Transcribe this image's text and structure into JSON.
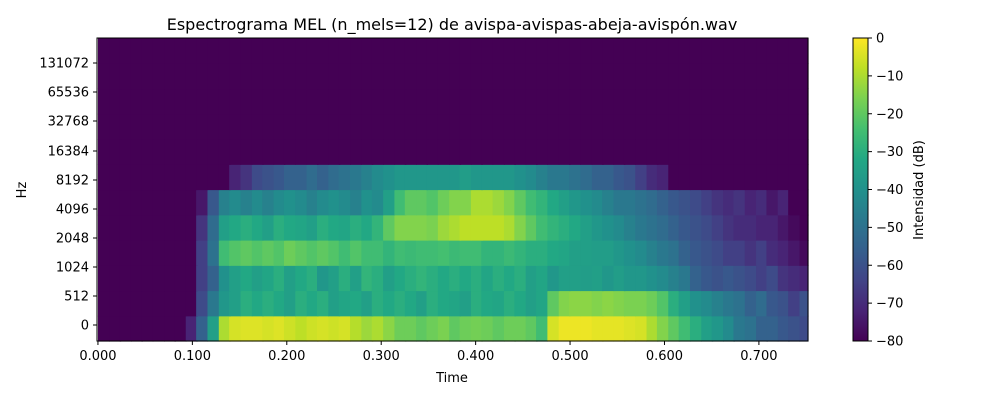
{
  "chart_data": {
    "type": "heatmap",
    "title": "Espectrograma MEL (n_mels=12) de avispa-avispas-abeja-avispón.wav",
    "xlabel": "Time",
    "ylabel": "Hz",
    "xlim": [
      -0.001,
      0.752
    ],
    "x_ticks": [
      "0.000",
      "0.100",
      "0.200",
      "0.300",
      "0.400",
      "0.500",
      "0.600",
      "0.700"
    ],
    "y_ticks": [
      "0",
      "512",
      "1024",
      "2048",
      "4096",
      "8192",
      "16384",
      "32768",
      "65536",
      "131072"
    ],
    "colorbar": {
      "label": "Intensidad (dB)",
      "range": [
        -80,
        0
      ],
      "ticks": [
        "0",
        "−10",
        "−20",
        "−30",
        "−40",
        "−50",
        "−60",
        "−70",
        "−80"
      ],
      "colormap": "viridis"
    },
    "n_mels": 12,
    "time_bins": [
      0.0,
      0.012,
      0.023,
      0.035,
      0.046,
      0.058,
      0.07,
      0.081,
      0.093,
      0.104,
      0.116,
      0.128,
      0.139,
      0.151,
      0.163,
      0.174,
      0.186,
      0.197,
      0.209,
      0.221,
      0.232,
      0.244,
      0.255,
      0.267,
      0.279,
      0.29,
      0.302,
      0.314,
      0.325,
      0.337,
      0.348,
      0.36,
      0.372,
      0.383,
      0.395,
      0.406,
      0.418,
      0.43,
      0.441,
      0.453,
      0.464,
      0.476,
      0.488,
      0.499,
      0.511,
      0.523,
      0.534,
      0.546,
      0.557,
      0.569,
      0.581,
      0.592,
      0.604,
      0.615,
      0.627,
      0.639,
      0.65,
      0.662,
      0.673,
      0.685,
      0.697,
      0.708,
      0.72,
      0.731,
      0.743
    ],
    "mel_bands_db": [
      [
        -80,
        -80,
        -80,
        -80,
        -80,
        -80,
        -80,
        -80,
        -72,
        -55,
        -35,
        -10,
        -5,
        -4,
        -4,
        -5,
        -4,
        -6,
        -8,
        -6,
        -5,
        -6,
        -5,
        -9,
        -12,
        -10,
        -14,
        -18,
        -18,
        -20,
        -18,
        -16,
        -20,
        -18,
        -17,
        -18,
        -20,
        -18,
        -18,
        -20,
        -25,
        -5,
        -2,
        -2,
        -2,
        -3,
        -3,
        -3,
        -4,
        -5,
        -10,
        -15,
        -20,
        -25,
        -30,
        -35,
        -38,
        -42,
        -48,
        -50,
        -55,
        -55,
        -58,
        -60,
        -62
      ],
      [
        -80,
        -80,
        -80,
        -80,
        -80,
        -80,
        -80,
        -80,
        -80,
        -62,
        -48,
        -38,
        -35,
        -30,
        -32,
        -30,
        -32,
        -35,
        -30,
        -32,
        -30,
        -35,
        -33,
        -32,
        -35,
        -30,
        -32,
        -30,
        -32,
        -35,
        -30,
        -32,
        -33,
        -35,
        -30,
        -32,
        -33,
        -30,
        -32,
        -35,
        -33,
        -20,
        -15,
        -14,
        -14,
        -15,
        -14,
        -15,
        -16,
        -16,
        -18,
        -22,
        -30,
        -35,
        -40,
        -42,
        -45,
        -48,
        -50,
        -55,
        -52,
        -58,
        -60,
        -65,
        -60
      ],
      [
        -80,
        -80,
        -80,
        -80,
        -80,
        -80,
        -80,
        -80,
        -80,
        -65,
        -55,
        -40,
        -35,
        -32,
        -35,
        -33,
        -30,
        -35,
        -32,
        -30,
        -38,
        -35,
        -30,
        -35,
        -28,
        -30,
        -35,
        -32,
        -30,
        -28,
        -30,
        -32,
        -30,
        -32,
        -30,
        -33,
        -30,
        -32,
        -30,
        -35,
        -33,
        -38,
        -35,
        -35,
        -36,
        -35,
        -38,
        -36,
        -38,
        -38,
        -40,
        -42,
        -45,
        -48,
        -55,
        -58,
        -60,
        -58,
        -60,
        -62,
        -65,
        -62,
        -68,
        -70,
        -72
      ],
      [
        -80,
        -80,
        -80,
        -80,
        -80,
        -80,
        -80,
        -80,
        -80,
        -65,
        -50,
        -25,
        -22,
        -20,
        -22,
        -20,
        -22,
        -18,
        -20,
        -22,
        -20,
        -22,
        -25,
        -22,
        -25,
        -25,
        -28,
        -25,
        -26,
        -25,
        -25,
        -24,
        -26,
        -25,
        -25,
        -28,
        -28,
        -26,
        -28,
        -30,
        -30,
        -32,
        -33,
        -35,
        -35,
        -36,
        -36,
        -38,
        -40,
        -42,
        -45,
        -48,
        -50,
        -55,
        -58,
        -60,
        -62,
        -65,
        -65,
        -68,
        -65,
        -70,
        -72,
        -75,
        -78
      ],
      [
        -80,
        -80,
        -80,
        -80,
        -80,
        -80,
        -80,
        -80,
        -80,
        -68,
        -52,
        -35,
        -32,
        -30,
        -32,
        -35,
        -30,
        -32,
        -33,
        -35,
        -30,
        -32,
        -33,
        -30,
        -32,
        -28,
        -20,
        -15,
        -15,
        -15,
        -16,
        -12,
        -10,
        -8,
        -8,
        -8,
        -8,
        -10,
        -15,
        -20,
        -25,
        -28,
        -30,
        -32,
        -35,
        -38,
        -40,
        -42,
        -45,
        -48,
        -50,
        -52,
        -55,
        -58,
        -60,
        -62,
        -65,
        -68,
        -70,
        -70,
        -72,
        -72,
        -75,
        -78,
        -80
      ],
      [
        -80,
        -80,
        -80,
        -80,
        -80,
        -80,
        -80,
        -80,
        -80,
        -75,
        -58,
        -45,
        -42,
        -45,
        -42,
        -45,
        -42,
        -40,
        -42,
        -45,
        -42,
        -40,
        -42,
        -45,
        -40,
        -42,
        -35,
        -25,
        -20,
        -20,
        -22,
        -18,
        -15,
        -15,
        -10,
        -10,
        -12,
        -15,
        -20,
        -25,
        -28,
        -32,
        -35,
        -38,
        -40,
        -42,
        -45,
        -48,
        -48,
        -50,
        -52,
        -55,
        -58,
        -60,
        -62,
        -65,
        -68,
        -70,
        -68,
        -72,
        -70,
        -75,
        -72,
        -80,
        -80
      ],
      [
        -80,
        -80,
        -80,
        -80,
        -80,
        -80,
        -80,
        -80,
        -80,
        -80,
        -80,
        -80,
        -72,
        -68,
        -62,
        -60,
        -58,
        -55,
        -55,
        -52,
        -55,
        -52,
        -50,
        -48,
        -45,
        -42,
        -40,
        -38,
        -38,
        -38,
        -38,
        -38,
        -38,
        -36,
        -38,
        -38,
        -38,
        -38,
        -40,
        -42,
        -45,
        -48,
        -48,
        -50,
        -52,
        -55,
        -55,
        -58,
        -60,
        -65,
        -70,
        -72,
        -80,
        -80,
        -80,
        -80,
        -80,
        -80,
        -80,
        -80,
        -80,
        -80,
        -80,
        -80,
        -80
      ],
      [
        -80,
        -80,
        -80,
        -80,
        -80,
        -80,
        -80,
        -80,
        -80,
        -80,
        -80,
        -80,
        -80,
        -80,
        -80,
        -80,
        -80,
        -80,
        -80,
        -80,
        -80,
        -80,
        -80,
        -80,
        -80,
        -80,
        -80,
        -80,
        -80,
        -80,
        -80,
        -80,
        -80,
        -80,
        -80,
        -80,
        -80,
        -80,
        -80,
        -80,
        -80,
        -80,
        -80,
        -80,
        -80,
        -80,
        -80,
        -80,
        -80,
        -80,
        -80,
        -80,
        -80,
        -80,
        -80,
        -80,
        -80,
        -80,
        -80,
        -80,
        -80,
        -80,
        -80,
        -80,
        -80
      ],
      [
        -80,
        -80,
        -80,
        -80,
        -80,
        -80,
        -80,
        -80,
        -80,
        -80,
        -80,
        -80,
        -80,
        -80,
        -80,
        -80,
        -80,
        -80,
        -80,
        -80,
        -80,
        -80,
        -80,
        -80,
        -80,
        -80,
        -80,
        -80,
        -80,
        -80,
        -80,
        -80,
        -80,
        -80,
        -80,
        -80,
        -80,
        -80,
        -80,
        -80,
        -80,
        -80,
        -80,
        -80,
        -80,
        -80,
        -80,
        -80,
        -80,
        -80,
        -80,
        -80,
        -80,
        -80,
        -80,
        -80,
        -80,
        -80,
        -80,
        -80,
        -80,
        -80,
        -80,
        -80,
        -80
      ],
      [
        -80,
        -80,
        -80,
        -80,
        -80,
        -80,
        -80,
        -80,
        -80,
        -80,
        -80,
        -80,
        -80,
        -80,
        -80,
        -80,
        -80,
        -80,
        -80,
        -80,
        -80,
        -80,
        -80,
        -80,
        -80,
        -80,
        -80,
        -80,
        -80,
        -80,
        -80,
        -80,
        -80,
        -80,
        -80,
        -80,
        -80,
        -80,
        -80,
        -80,
        -80,
        -80,
        -80,
        -80,
        -80,
        -80,
        -80,
        -80,
        -80,
        -80,
        -80,
        -80,
        -80,
        -80,
        -80,
        -80,
        -80,
        -80,
        -80,
        -80,
        -80,
        -80,
        -80,
        -80,
        -80
      ],
      [
        -80,
        -80,
        -80,
        -80,
        -80,
        -80,
        -80,
        -80,
        -80,
        -80,
        -80,
        -80,
        -80,
        -80,
        -80,
        -80,
        -80,
        -80,
        -80,
        -80,
        -80,
        -80,
        -80,
        -80,
        -80,
        -80,
        -80,
        -80,
        -80,
        -80,
        -80,
        -80,
        -80,
        -80,
        -80,
        -80,
        -80,
        -80,
        -80,
        -80,
        -80,
        -80,
        -80,
        -80,
        -80,
        -80,
        -80,
        -80,
        -80,
        -80,
        -80,
        -80,
        -80,
        -80,
        -80,
        -80,
        -80,
        -80,
        -80,
        -80,
        -80,
        -80,
        -80,
        -80,
        -80
      ],
      [
        -80,
        -80,
        -80,
        -80,
        -80,
        -80,
        -80,
        -80,
        -80,
        -80,
        -80,
        -80,
        -80,
        -80,
        -80,
        -80,
        -80,
        -80,
        -80,
        -80,
        -80,
        -80,
        -80,
        -80,
        -80,
        -80,
        -80,
        -80,
        -80,
        -80,
        -80,
        -80,
        -80,
        -80,
        -80,
        -80,
        -80,
        -80,
        -80,
        -80,
        -80,
        -80,
        -80,
        -80,
        -80,
        -80,
        -80,
        -80,
        -80,
        -80,
        -80,
        -80,
        -80,
        -80,
        -80,
        -80,
        -80,
        -80,
        -80,
        -80,
        -80,
        -80,
        -80,
        -80,
        -80
      ]
    ]
  }
}
